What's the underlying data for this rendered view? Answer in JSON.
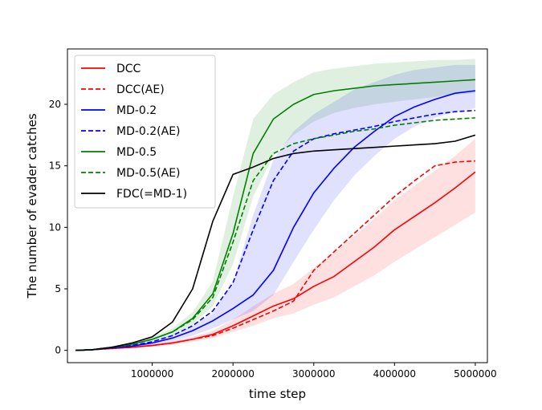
{
  "chart_data": {
    "type": "line",
    "xlabel": "time step",
    "ylabel": "The number of evader catches",
    "xlim": [
      -50000,
      5150000
    ],
    "ylim": [
      -1.0,
      24.5
    ],
    "xticks": [
      1000000,
      2000000,
      3000000,
      4000000,
      5000000
    ],
    "xtick_labels": [
      "1000000",
      "2000000",
      "3000000",
      "4000000",
      "5000000"
    ],
    "yticks": [
      0,
      5,
      10,
      15,
      20
    ],
    "ytick_labels": [
      "0",
      "5",
      "10",
      "15",
      "20"
    ],
    "grid": false,
    "legend_position": "upper-left",
    "x": [
      50000,
      250000,
      500000,
      750000,
      1000000,
      1250000,
      1500000,
      1750000,
      2000000,
      2250000,
      2500000,
      2750000,
      3000000,
      3250000,
      3500000,
      3750000,
      4000000,
      4250000,
      4500000,
      4750000,
      5000000
    ],
    "series": [
      {
        "name": "DCC",
        "color": "#ff0000",
        "dash": "solid",
        "band": true,
        "values": [
          0.0,
          0.05,
          0.15,
          0.25,
          0.4,
          0.6,
          0.9,
          1.3,
          2.0,
          2.8,
          3.6,
          4.2,
          5.2,
          6.0,
          7.2,
          8.4,
          9.8,
          10.9,
          12.0,
          13.2,
          14.5
        ],
        "lower": [
          0.0,
          0.02,
          0.1,
          0.18,
          0.3,
          0.45,
          0.7,
          1.0,
          1.5,
          2.0,
          2.6,
          3.0,
          3.7,
          4.3,
          5.2,
          6.1,
          7.2,
          8.2,
          9.2,
          10.2,
          11.2
        ],
        "upper": [
          0.0,
          0.08,
          0.2,
          0.32,
          0.5,
          0.75,
          1.1,
          1.6,
          2.5,
          3.6,
          4.6,
          5.4,
          6.7,
          7.9,
          9.3,
          10.7,
          12.2,
          13.4,
          14.6,
          15.8,
          17.2
        ]
      },
      {
        "name": "DCC(AE)",
        "color": "#ff0000",
        "dash": "dashed",
        "band": false,
        "values": [
          0.0,
          0.05,
          0.15,
          0.25,
          0.4,
          0.6,
          0.9,
          1.2,
          1.8,
          2.5,
          3.2,
          4.0,
          6.5,
          8.0,
          9.5,
          11.0,
          12.5,
          13.8,
          15.0,
          15.3,
          15.4
        ]
      },
      {
        "name": "MD-0.2",
        "color": "#0000ff",
        "dash": "solid",
        "band": true,
        "values": [
          0.0,
          0.05,
          0.2,
          0.35,
          0.6,
          1.0,
          1.6,
          2.4,
          3.4,
          4.5,
          6.5,
          10.0,
          12.8,
          14.8,
          16.5,
          17.8,
          19.0,
          19.8,
          20.4,
          20.9,
          21.1
        ],
        "lower": [
          0.0,
          0.03,
          0.12,
          0.25,
          0.45,
          0.75,
          1.2,
          1.8,
          2.5,
          3.2,
          4.5,
          7.2,
          9.8,
          12.2,
          14.2,
          15.8,
          17.2,
          18.2,
          18.9,
          19.4,
          19.7
        ],
        "upper": [
          0.0,
          0.08,
          0.28,
          0.45,
          0.75,
          1.25,
          2.0,
          3.0,
          5.5,
          11.0,
          15.5,
          17.8,
          19.2,
          20.2,
          21.2,
          21.8,
          22.4,
          22.8,
          23.0,
          23.2,
          23.2
        ]
      },
      {
        "name": "MD-0.2(AE)",
        "color": "#0000ff",
        "dash": "dashed",
        "band": false,
        "values": [
          0.0,
          0.05,
          0.2,
          0.4,
          0.7,
          1.2,
          2.0,
          3.2,
          5.5,
          9.8,
          13.8,
          16.2,
          17.2,
          17.6,
          17.9,
          18.2,
          18.6,
          18.9,
          19.2,
          19.4,
          19.5
        ]
      },
      {
        "name": "MD-0.5",
        "color": "#008000",
        "dash": "solid",
        "band": true,
        "values": [
          0.0,
          0.05,
          0.25,
          0.5,
          0.9,
          1.5,
          2.6,
          4.6,
          9.5,
          16.0,
          18.8,
          20.0,
          20.8,
          21.1,
          21.3,
          21.5,
          21.6,
          21.7,
          21.8,
          21.9,
          22.0
        ],
        "lower": [
          0.0,
          0.03,
          0.18,
          0.4,
          0.7,
          1.2,
          2.1,
          3.6,
          7.0,
          12.5,
          15.8,
          17.5,
          18.6,
          19.3,
          19.7,
          20.0,
          20.2,
          20.4,
          20.6,
          20.8,
          20.9
        ],
        "upper": [
          0.0,
          0.08,
          0.32,
          0.6,
          1.1,
          1.8,
          3.1,
          5.6,
          12.5,
          18.8,
          20.8,
          21.8,
          22.6,
          22.9,
          23.1,
          23.3,
          23.4,
          23.5,
          23.6,
          23.6,
          23.7
        ]
      },
      {
        "name": "MD-0.5(AE)",
        "color": "#008000",
        "dash": "dashed",
        "band": false,
        "values": [
          0.0,
          0.05,
          0.25,
          0.5,
          0.9,
          1.5,
          2.5,
          4.3,
          8.8,
          13.8,
          16.0,
          16.8,
          17.2,
          17.5,
          17.8,
          18.0,
          18.3,
          18.5,
          18.7,
          18.8,
          18.9
        ]
      },
      {
        "name": "FDC(=MD-1)",
        "color": "#000000",
        "dash": "solid",
        "band": false,
        "values": [
          0.0,
          0.05,
          0.25,
          0.6,
          1.1,
          2.3,
          5.0,
          10.5,
          14.3,
          14.9,
          15.6,
          16.0,
          16.2,
          16.3,
          16.4,
          16.5,
          16.6,
          16.7,
          16.8,
          17.0,
          17.5
        ]
      }
    ]
  }
}
